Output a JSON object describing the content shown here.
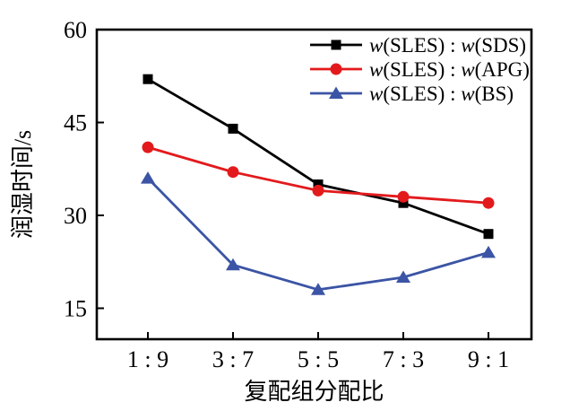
{
  "figure": {
    "background": "#ffffff",
    "frame_color": "#000000"
  },
  "chart_data": {
    "type": "line",
    "title": "",
    "xlabel": "复配组分配比",
    "ylabel": "润湿时间/s",
    "categories": [
      "1 : 9",
      "3 : 7",
      "5 : 5",
      "7 : 3",
      "9 : 1"
    ],
    "y_ticks": [
      15,
      30,
      45,
      60
    ],
    "ylim": [
      10,
      60
    ],
    "grid": false,
    "legend_position": "top-right-inside",
    "series": [
      {
        "name": "w(SLES) : w(SDS)",
        "marker": "square",
        "color": "#000000",
        "values": [
          52,
          44,
          35,
          32,
          27
        ]
      },
      {
        "name": "w(SLES) : w(APG)",
        "marker": "circle",
        "color": "#e31a1c",
        "values": [
          41,
          37,
          34,
          33,
          32
        ]
      },
      {
        "name": "w(SLES) : w(BS)",
        "marker": "triangle",
        "color": "#3b54a5",
        "values": [
          36,
          22,
          18,
          20,
          24
        ]
      }
    ]
  }
}
